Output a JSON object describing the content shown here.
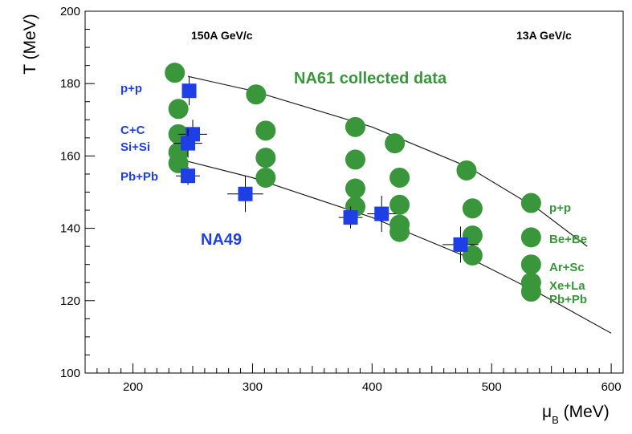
{
  "chart_data": {
    "type": "scatter",
    "xlabel_main": "μ",
    "xlabel_sub": "B",
    "xlabel_unit": " (MeV)",
    "ylabel": "T (MeV)",
    "xlim": [
      160,
      610
    ],
    "ylim": [
      100,
      200
    ],
    "x_ticks": [
      200,
      300,
      400,
      500,
      600
    ],
    "y_ticks": [
      100,
      120,
      140,
      160,
      180,
      200
    ],
    "energy_labels": {
      "left": "150A GeV/c",
      "right": "13A GeV/c"
    },
    "annotations": {
      "na61": "NA61 collected data",
      "na49": "NA49"
    },
    "na49_labels": [
      "p+p",
      "C+C",
      "Si+Si",
      "Pb+Pb"
    ],
    "na61_labels": [
      "p+p",
      "Be+Be",
      "Ar+Sc",
      "Xe+La",
      "Pb+Pb"
    ],
    "curves": [
      {
        "x": [
          246,
          300,
          400,
          480,
          540,
          580
        ],
        "y": [
          182,
          178,
          168,
          157,
          145,
          135
        ]
      },
      {
        "x": [
          240,
          300,
          400,
          480,
          540,
          600
        ],
        "y": [
          159,
          154,
          143,
          132,
          122,
          111
        ]
      }
    ],
    "series": [
      {
        "name": "NA61 collected data",
        "color": "#3a963a",
        "points": [
          {
            "x": 235,
            "y": 183
          },
          {
            "x": 238,
            "y": 173
          },
          {
            "x": 238,
            "y": 166
          },
          {
            "x": 238,
            "y": 161
          },
          {
            "x": 238,
            "y": 158
          },
          {
            "x": 303,
            "y": 177
          },
          {
            "x": 311,
            "y": 167
          },
          {
            "x": 311,
            "y": 159.5
          },
          {
            "x": 311,
            "y": 154
          },
          {
            "x": 386,
            "y": 168
          },
          {
            "x": 386,
            "y": 159
          },
          {
            "x": 386,
            "y": 151
          },
          {
            "x": 386,
            "y": 146
          },
          {
            "x": 419,
            "y": 163.5
          },
          {
            "x": 423,
            "y": 154
          },
          {
            "x": 423,
            "y": 146.5
          },
          {
            "x": 423,
            "y": 141
          },
          {
            "x": 423,
            "y": 139
          },
          {
            "x": 479,
            "y": 156
          },
          {
            "x": 484,
            "y": 145.5
          },
          {
            "x": 484,
            "y": 138
          },
          {
            "x": 484,
            "y": 132.5
          },
          {
            "x": 533,
            "y": 147
          },
          {
            "x": 533,
            "y": 137.5
          },
          {
            "x": 533,
            "y": 130
          },
          {
            "x": 533,
            "y": 125
          },
          {
            "x": 533,
            "y": 122.5
          }
        ]
      },
      {
        "name": "NA49",
        "color": "#1f3fe6",
        "points": [
          {
            "x": 247,
            "y": 178,
            "xerr": 4,
            "yerr": 4
          },
          {
            "x": 250,
            "y": 166,
            "xerr": 12,
            "yerr": 4
          },
          {
            "x": 246,
            "y": 163.5,
            "xerr": 12,
            "yerr": 4
          },
          {
            "x": 246,
            "y": 154.5,
            "xerr": 10,
            "yerr": 2.5
          },
          {
            "x": 294,
            "y": 149.5,
            "xerr": 15,
            "yerr": 5
          },
          {
            "x": 382,
            "y": 143,
            "xerr": 10,
            "yerr": 3
          },
          {
            "x": 408,
            "y": 144,
            "xerr": 12,
            "yerr": 5
          },
          {
            "x": 474,
            "y": 135.5,
            "xerr": 15,
            "yerr": 5
          }
        ]
      }
    ]
  }
}
